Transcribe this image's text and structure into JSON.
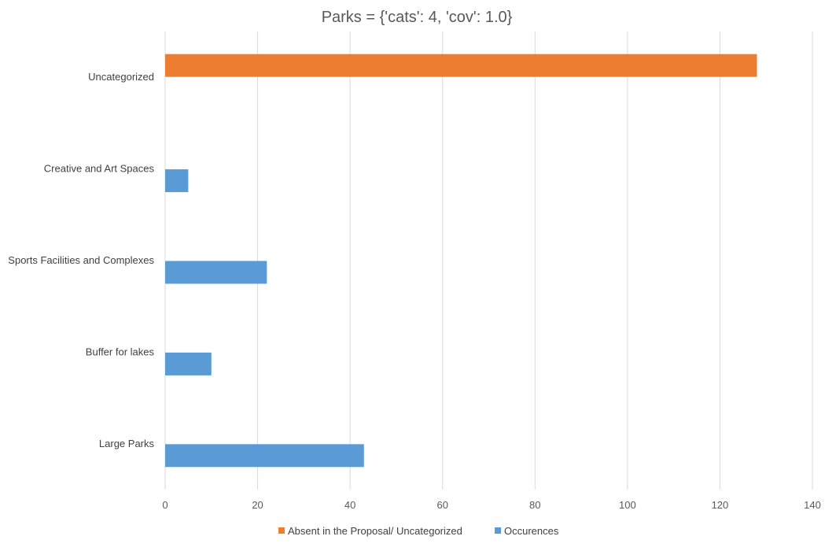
{
  "chart_data": {
    "type": "bar",
    "orientation": "horizontal",
    "title": "Parks = {'cats': 4, 'cov': 1.0}",
    "categories": [
      "Uncategorized",
      "Creative and Art Spaces",
      "Sports Facilities and Complexes",
      "Buffer for lakes",
      "Large Parks"
    ],
    "series": [
      {
        "name": "Absent in the Proposal/ Uncategorized",
        "color": "#ED7D31",
        "values": [
          128,
          null,
          null,
          null,
          null
        ]
      },
      {
        "name": "Occurences",
        "color": "#5B9BD5",
        "values": [
          null,
          5,
          22,
          10,
          43
        ]
      }
    ],
    "xlim": [
      0,
      140
    ],
    "xticks": [
      0,
      20,
      40,
      60,
      80,
      100,
      120,
      140
    ],
    "grid": true,
    "legend_position": "bottom"
  }
}
